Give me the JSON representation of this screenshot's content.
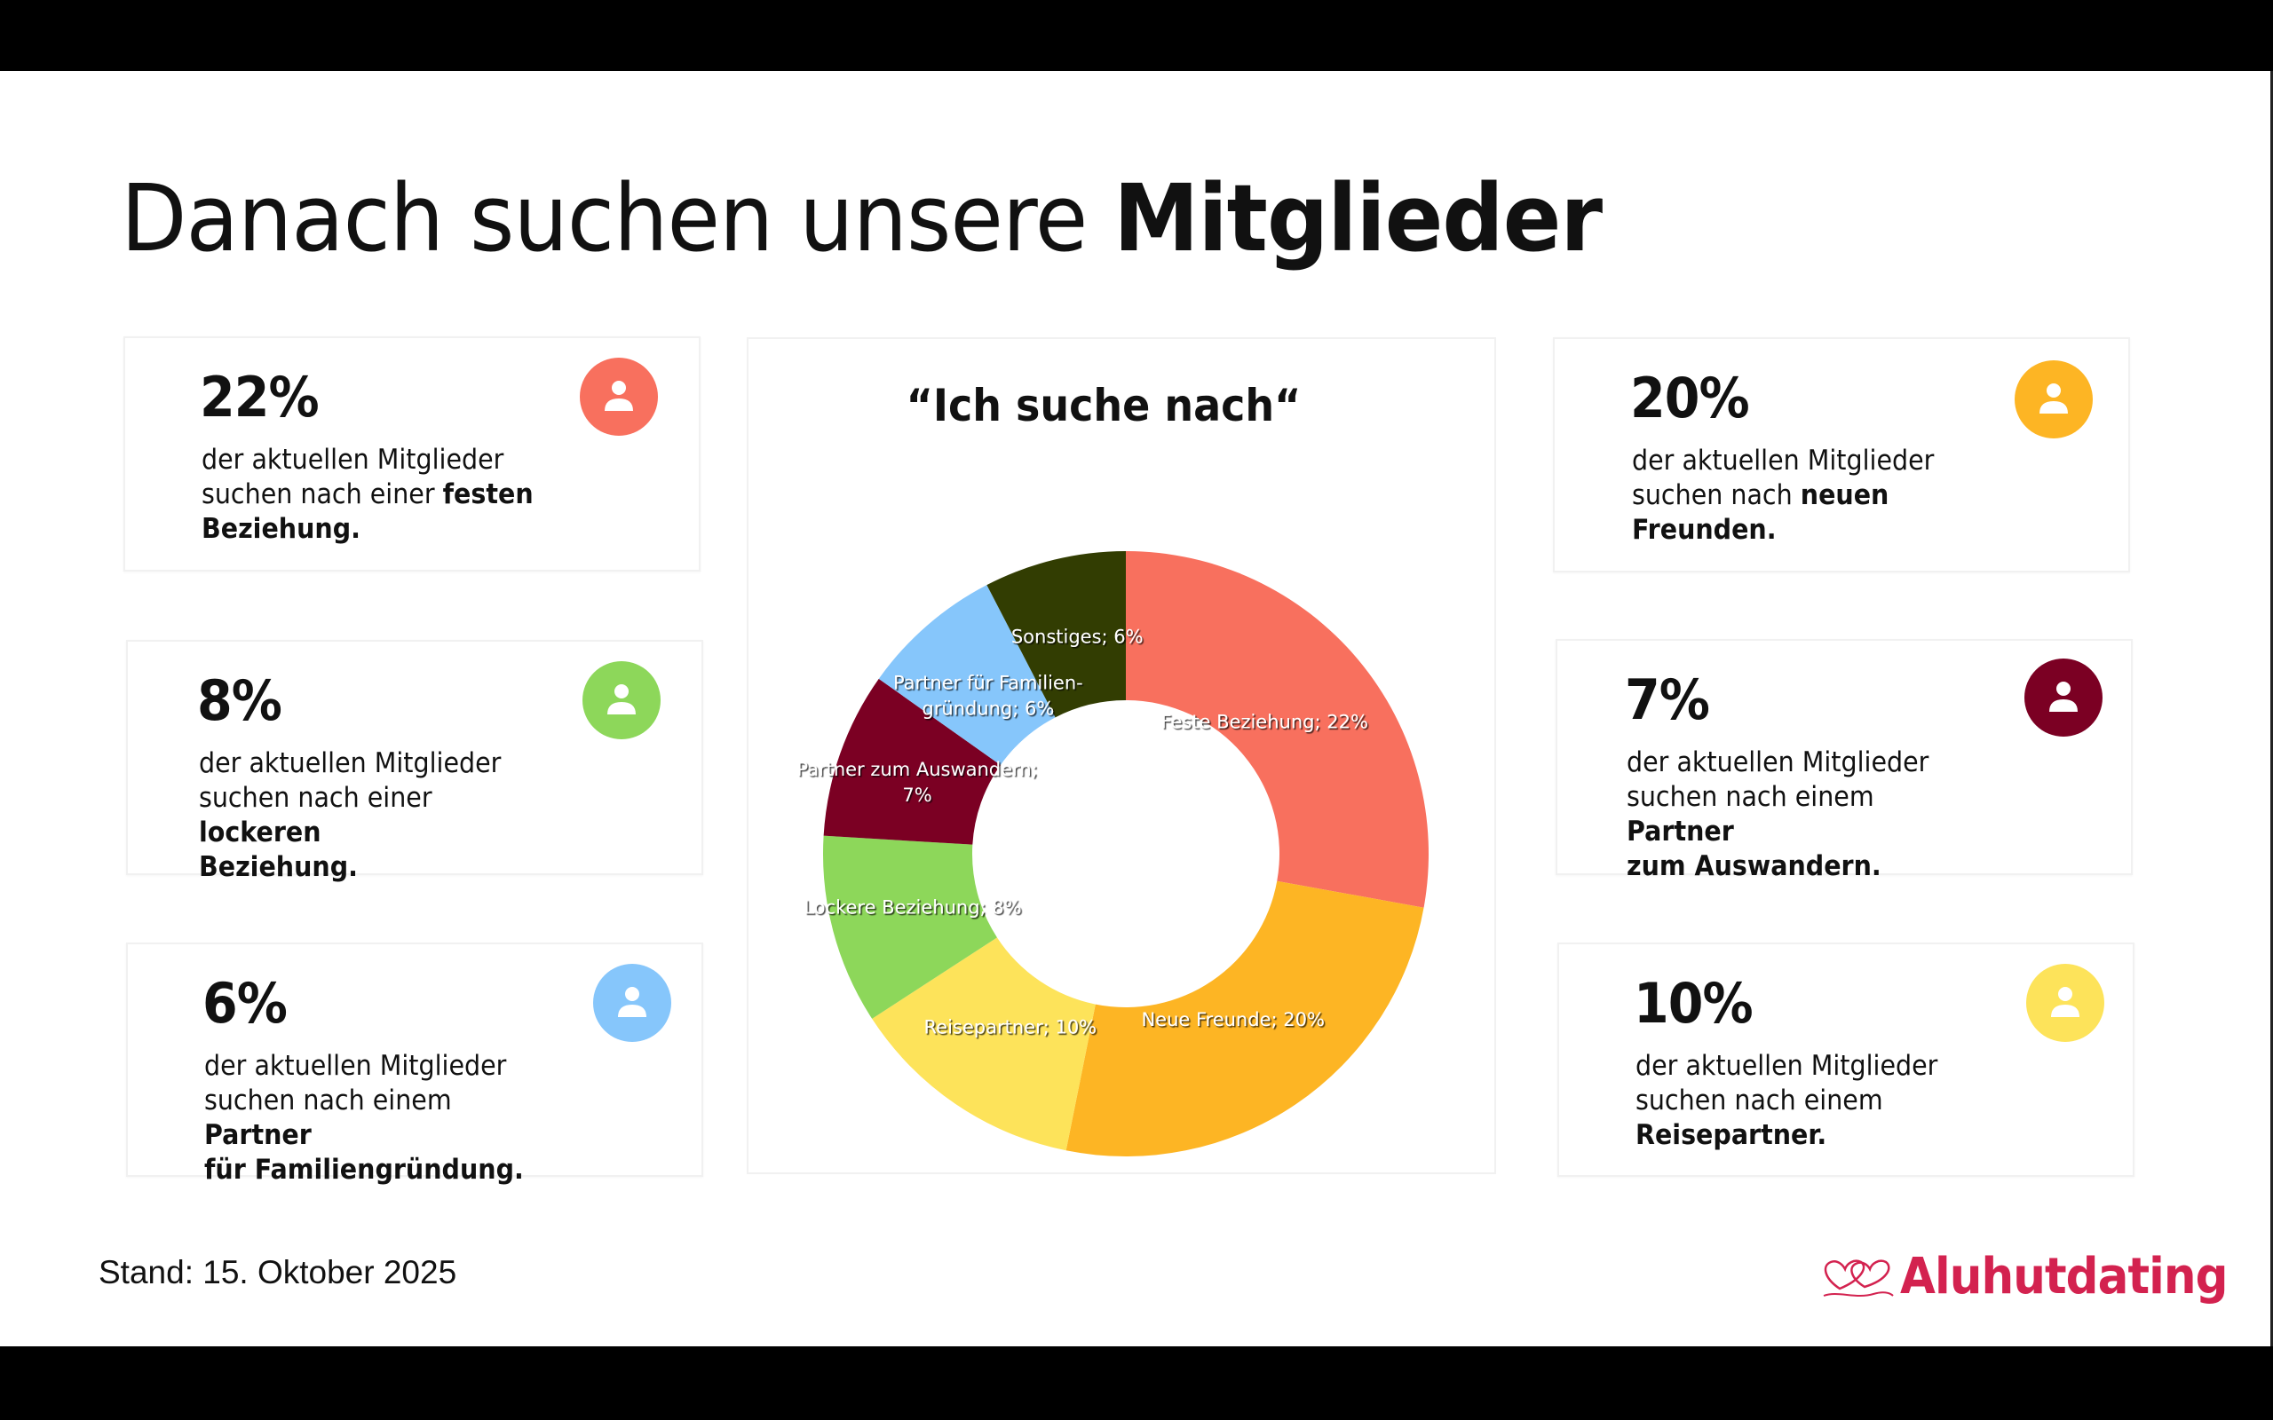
{
  "slide": {
    "title_regular": "Danach suchen unsere ",
    "title_bold": "Mitglieder",
    "footer_date": "Stand: 15. Oktober 2025",
    "brand": "Aluhutdating",
    "brand_color": "#d3224f"
  },
  "cards": [
    {
      "pct": "22%",
      "line1": "der aktuellen Mitglieder",
      "line2": "suchen nach einer ",
      "bold2": "festen",
      "bold3": "Beziehung.",
      "icon": "user-icon",
      "color": "#f8705e"
    },
    {
      "pct": "8%",
      "line1": "der aktuellen Mitglieder",
      "line2": "suchen nach einer ",
      "bold2": "lockeren",
      "bold3": "Beziehung.",
      "icon": "user-icon",
      "color": "#8dd75a"
    },
    {
      "pct": "6%",
      "line1": "der aktuellen Mitglieder",
      "line2": "suchen nach einem ",
      "bold2": "Partner",
      "bold3": "für Familiengründung.",
      "icon": "user-icon",
      "color": "#86c6fb"
    },
    {
      "pct": "20%",
      "line1": "der aktuellen Mitglieder",
      "line2": "suchen nach ",
      "bold2": "neuen",
      "bold3": "Freunden.",
      "icon": "user-icon",
      "color": "#fdb524"
    },
    {
      "pct": "7%",
      "line1": "der aktuellen Mitglieder",
      "line2": "suchen nach einem ",
      "bold2": "Partner",
      "bold3": "zum Auswandern.",
      "icon": "user-icon",
      "color": "#7b0023"
    },
    {
      "pct": "10%",
      "line1": "der aktuellen Mitglieder",
      "line2": "suchen nach einem",
      "bold2": "",
      "bold3": "Reisepartner.",
      "icon": "user-icon",
      "color": "#fde35a"
    }
  ],
  "chart_data": {
    "type": "pie",
    "subtype": "donut",
    "title": "“Ich suche nach“",
    "start": "top, clockwise",
    "unit": "%",
    "categories": [
      "Feste Beziehung",
      "Neue Freunde",
      "Reisepartner",
      "Lockere Beziehung",
      "Partner zum Auswandern",
      "Partner für Familiengründung",
      "Sonstiges"
    ],
    "values": [
      22,
      20,
      10,
      8,
      7,
      6,
      6
    ],
    "colors": [
      "#f8705e",
      "#fdb524",
      "#fde35a",
      "#8dd75a",
      "#7b0023",
      "#86c6fb",
      "#323d02"
    ],
    "data_labels": [
      [
        "Feste Beziehung; 22%"
      ],
      [
        "Neue Freunde; 20%"
      ],
      [
        "Reisepartner; 10%"
      ],
      [
        "Lockere Beziehung; 8%"
      ],
      [
        "Partner zum Auswandern;",
        "7%"
      ],
      [
        "Partner für Familien-",
        "gründung; 6%"
      ],
      [
        "Sonstiges; 6%"
      ]
    ],
    "legend": "none"
  }
}
